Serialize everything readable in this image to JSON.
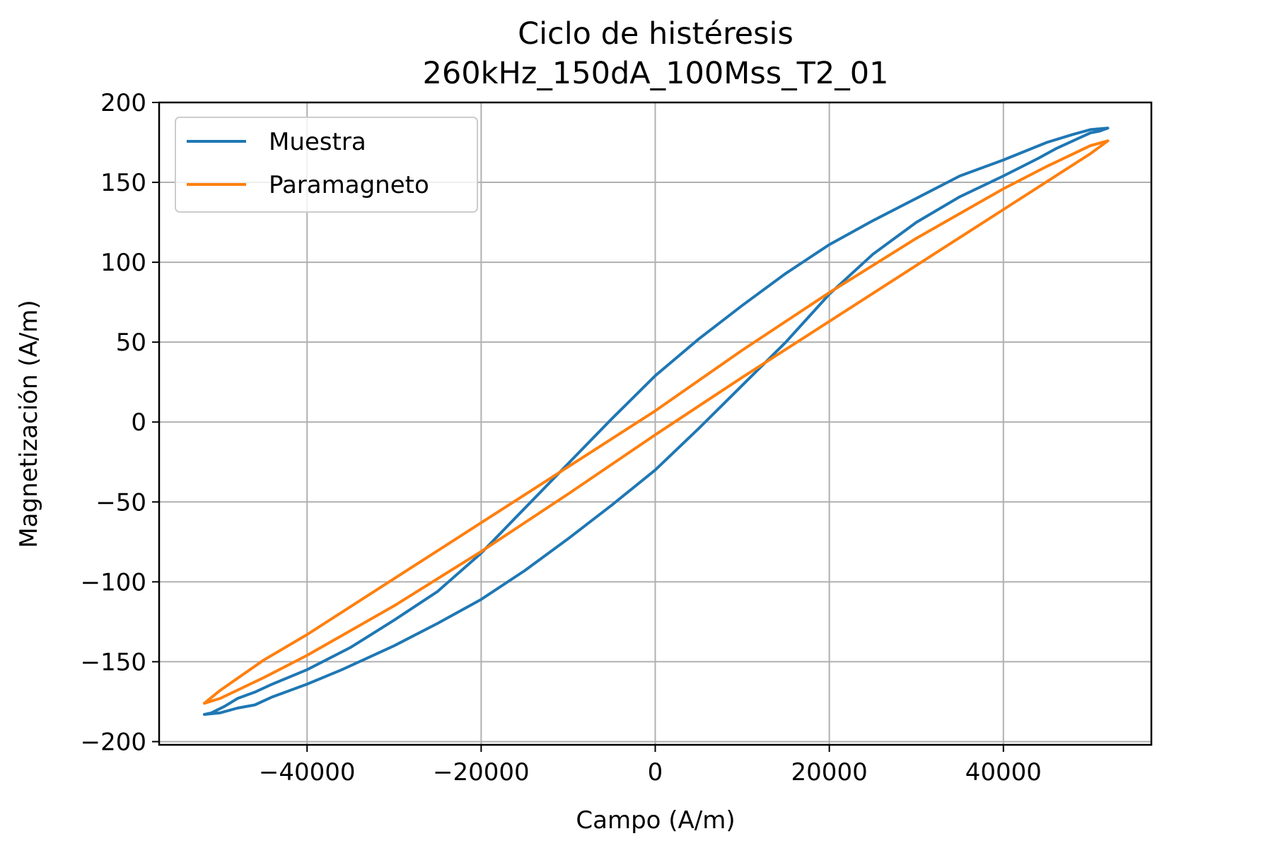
{
  "chart_data": {
    "type": "line",
    "title": "Ciclo de histéresis",
    "subtitle": "260kHz_150dA_100Mss_T2_01",
    "xlabel": "Campo (A/m)",
    "ylabel": "Magnetización (A/m)",
    "xlim": [
      -57000,
      57000
    ],
    "ylim": [
      -202,
      200
    ],
    "xticks": [
      -40000,
      -20000,
      0,
      20000,
      40000
    ],
    "xtick_labels": [
      "−40000",
      "−20000",
      "0",
      "20000",
      "40000"
    ],
    "yticks": [
      -200,
      -150,
      -100,
      -50,
      0,
      50,
      100,
      150,
      200
    ],
    "ytick_labels": [
      "−200",
      "−150",
      "−100",
      "−50",
      "0",
      "50",
      "100",
      "150",
      "200"
    ],
    "grid": true,
    "legend_position": "top-left",
    "series": [
      {
        "name": "Muestra",
        "color": "#1f77b4",
        "x": [
          -51800,
          -50000,
          -48000,
          -46000,
          -44000,
          -40000,
          -36000,
          -30000,
          -25000,
          -20000,
          -15000,
          -10000,
          -5000,
          0,
          5000,
          10000,
          15000,
          20000,
          25000,
          30000,
          35000,
          40000,
          44000,
          46000,
          48000,
          50000,
          51000,
          52000,
          50000,
          48000,
          45000,
          40000,
          35000,
          30000,
          25000,
          20000,
          15000,
          10000,
          5000,
          0,
          -5000,
          -10000,
          -15000,
          -20000,
          -25000,
          -30000,
          -35000,
          -40000,
          -44000,
          -46000,
          -48000,
          -49500,
          -51000,
          -51800
        ],
        "y": [
          -183,
          -182,
          -179,
          -177,
          -172,
          -164,
          -155,
          -140,
          -126,
          -111,
          -93,
          -73,
          -52,
          -30,
          -4,
          23,
          50,
          80,
          105,
          125,
          141,
          154,
          165,
          171,
          176,
          181,
          182,
          184,
          183,
          180,
          175,
          164,
          154,
          140,
          126,
          111,
          93,
          73,
          52,
          29,
          2,
          -26,
          -54,
          -82,
          -106,
          -124,
          -141,
          -155,
          -164,
          -169,
          -173,
          -178,
          -182,
          -183
        ]
      },
      {
        "name": "Paramagneto",
        "color": "#ff7f0e",
        "x": [
          -51800,
          -50000,
          -45000,
          -40000,
          -30000,
          -20000,
          -10000,
          0,
          10000,
          20000,
          30000,
          40000,
          50000,
          52000,
          50000,
          45000,
          40000,
          30000,
          20000,
          10000,
          0,
          -10000,
          -20000,
          -30000,
          -40000,
          -45000,
          -50000,
          -51800
        ],
        "y": [
          -176,
          -173,
          -160,
          -146,
          -115,
          -81,
          -45,
          -8,
          28,
          63,
          98,
          133,
          168,
          176,
          173,
          160,
          146,
          115,
          81,
          45,
          7,
          -28,
          -63,
          -98,
          -133,
          -149,
          -168,
          -176
        ]
      }
    ]
  }
}
